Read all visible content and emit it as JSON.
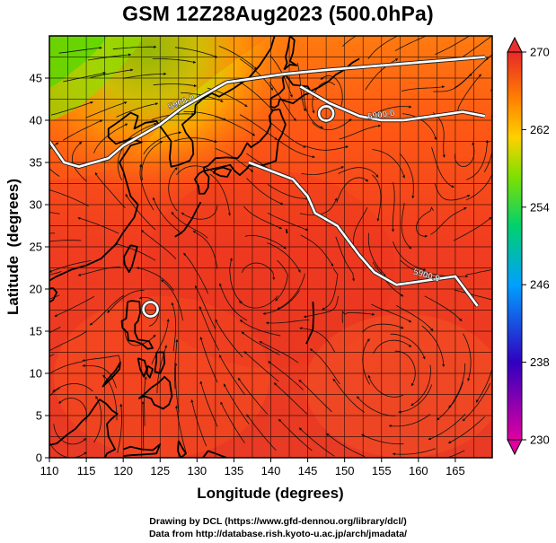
{
  "title": "GSM 12Z28Aug2023 (500.0hPa)",
  "xlabel": "Longitude (degrees)",
  "ylabel": "Latitude  (degrees)",
  "credits": [
    "Drawing by DCL (https://www.gfd-dennou.org/library/dcl/)",
    "Data from http://database.rish.kyoto-u.ac.jp/arch/jmadata/"
  ],
  "chart_data": {
    "type": "heatmap",
    "title": "GSM 12Z28Aug2023 (500.0hPa)",
    "xlabel": "Longitude (degrees)",
    "ylabel": "Latitude  (degrees)",
    "xlim": [
      110,
      170
    ],
    "ylim": [
      0,
      50
    ],
    "x_ticks": [
      110,
      115,
      120,
      125,
      130,
      135,
      140,
      145,
      150,
      155,
      160,
      165
    ],
    "y_ticks": [
      0,
      5,
      10,
      15,
      20,
      25,
      30,
      35,
      40,
      45
    ],
    "grid": true,
    "colorbar": {
      "ticks": [
        230,
        238,
        246,
        254,
        262,
        270
      ],
      "range": [
        230,
        270
      ],
      "colors": [
        "#e00090",
        "#4000c0",
        "#0040ff",
        "#00b0ff",
        "#00d060",
        "#80e000",
        "#f0e000",
        "#ff9000",
        "#ff4010",
        "#e02020"
      ]
    },
    "contours": [
      {
        "label": "5900.0",
        "points": [
          [
            110,
            37.5
          ],
          [
            112,
            35
          ],
          [
            114,
            34.5
          ],
          [
            118,
            35.5
          ],
          [
            120,
            37
          ],
          [
            122,
            38
          ],
          [
            125,
            39.5
          ],
          [
            128,
            41.5
          ],
          [
            131,
            43
          ],
          [
            134,
            44.5
          ],
          [
            138,
            45
          ],
          [
            142,
            45.5
          ],
          [
            148,
            46
          ],
          [
            155,
            46.5
          ],
          [
            162,
            47
          ],
          [
            169,
            47.5
          ]
        ]
      },
      {
        "label": "5900.0",
        "points": [
          [
            144,
            44
          ],
          [
            148,
            42
          ],
          [
            152,
            40.5
          ],
          [
            155,
            40
          ],
          [
            158,
            40
          ],
          [
            162,
            40.5
          ],
          [
            166,
            41
          ],
          [
            169,
            40.5
          ]
        ]
      },
      {
        "label": "5900.0",
        "points": [
          [
            137,
            35
          ],
          [
            140,
            34
          ],
          [
            143,
            33
          ],
          [
            145,
            31
          ],
          [
            146,
            29
          ],
          [
            149,
            27.5
          ],
          [
            152,
            24
          ],
          [
            154,
            22
          ],
          [
            157,
            20.5
          ],
          [
            161,
            21
          ],
          [
            165,
            21.5
          ],
          [
            168,
            18
          ]
        ]
      }
    ],
    "closed_contours": [
      {
        "lon": 147.5,
        "lat": 40.8
      },
      {
        "lon": 123.7,
        "lat": 17.6
      }
    ],
    "coastline_regions": [
      "East Asia",
      "Japan",
      "Philippines",
      "Taiwan",
      "Borneo"
    ]
  }
}
